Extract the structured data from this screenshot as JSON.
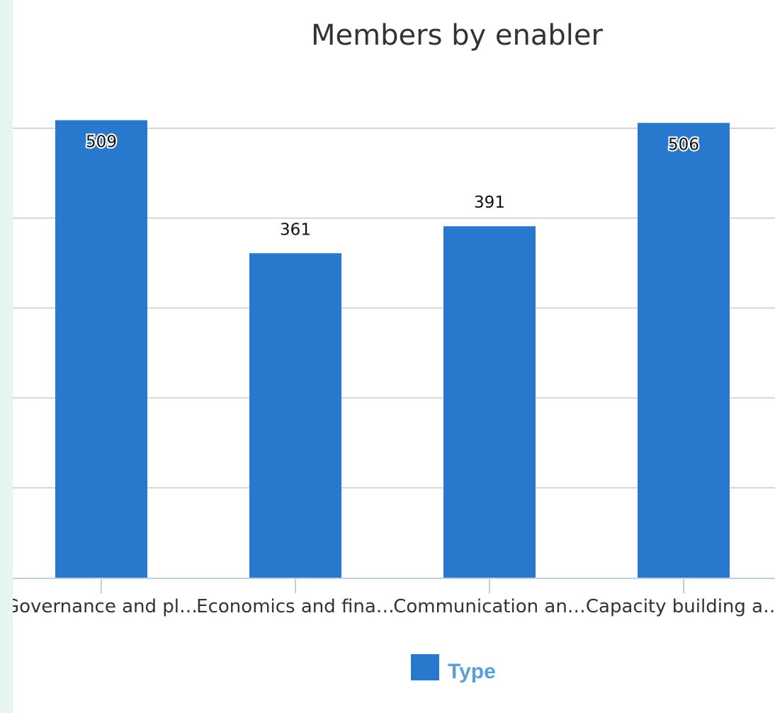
{
  "chart_data": {
    "type": "bar",
    "title": "Members by enabler",
    "categories": [
      "Governance and pl…",
      "Economics and fina…",
      "Communication an…",
      "Capacity building a…"
    ],
    "series": [
      {
        "name": "Type",
        "values": [
          509,
          361,
          391,
          506
        ],
        "color": "#2878cd"
      }
    ],
    "ylim": [
      0,
      500
    ],
    "yticks": [
      0,
      100,
      200,
      300,
      400,
      500
    ],
    "grid": true,
    "legend": "bottom-center",
    "data_labels": true
  }
}
